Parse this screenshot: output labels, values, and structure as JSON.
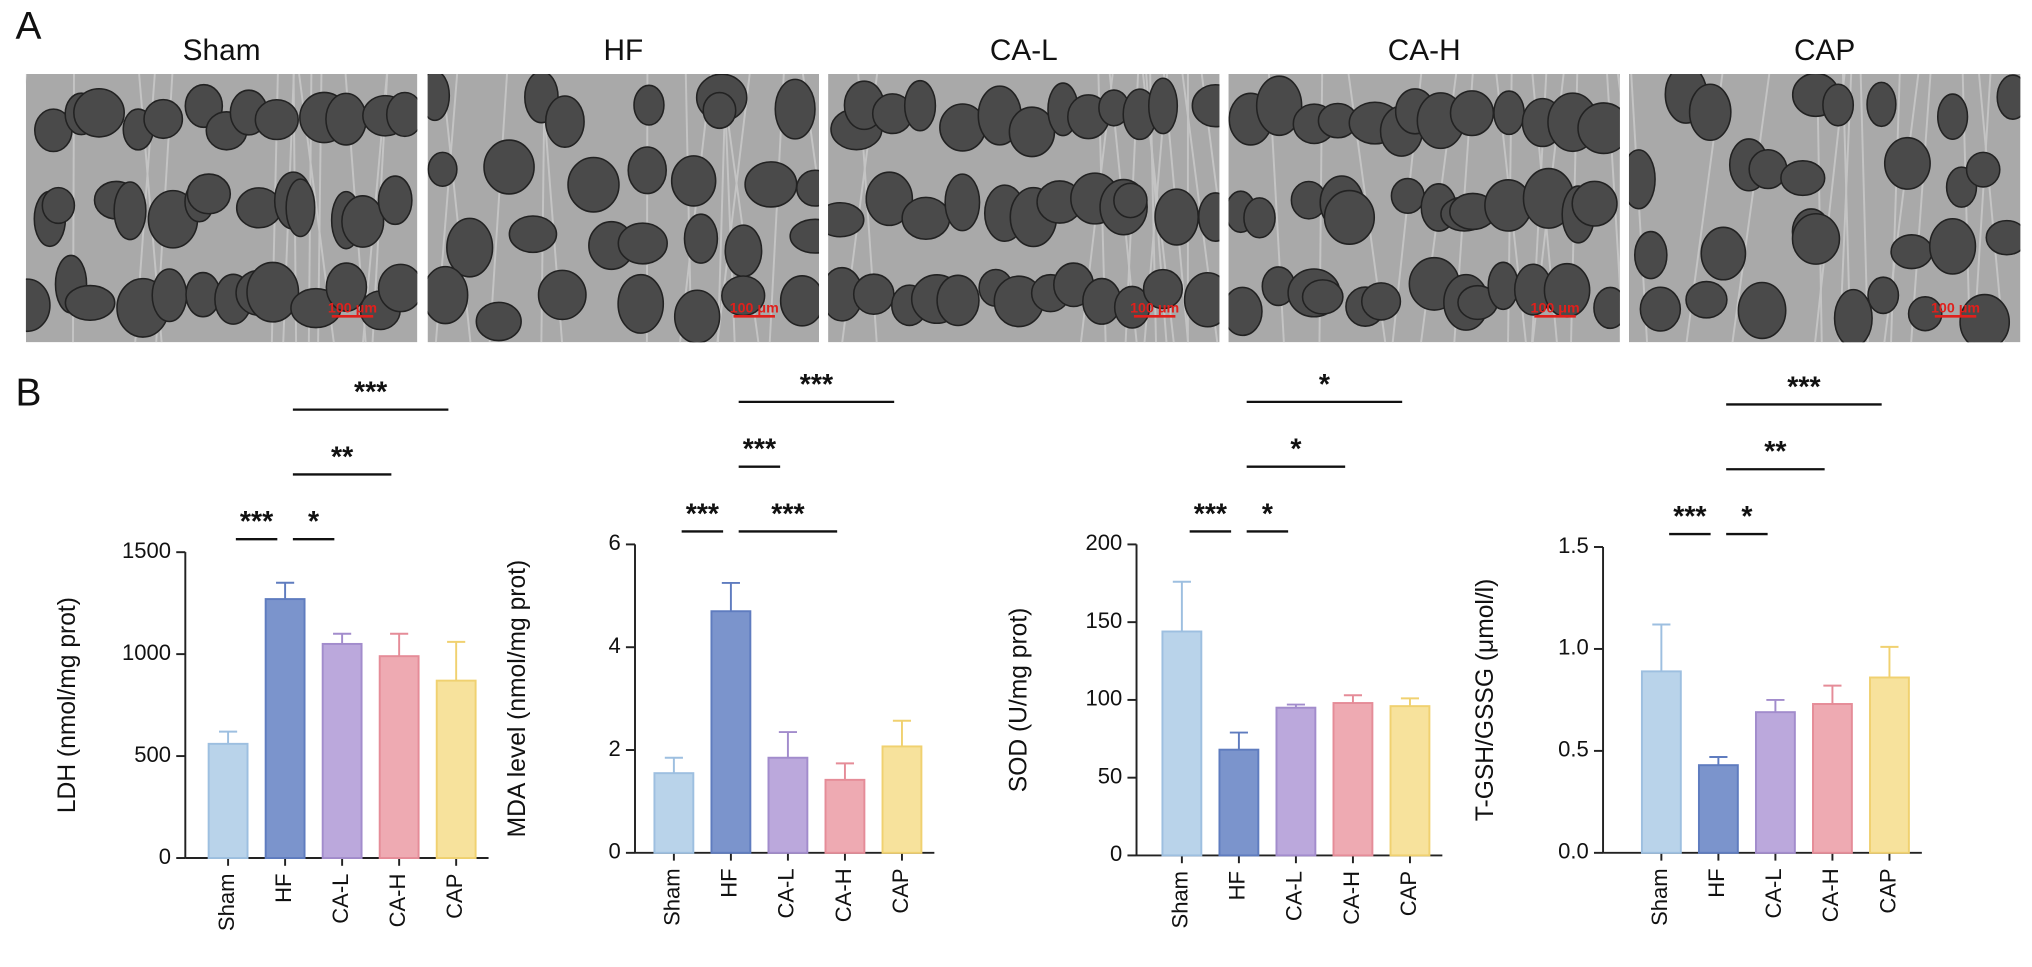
{
  "panel_a": {
    "label": "A",
    "images": [
      {
        "title": "Sham",
        "scale_bar": "100 μm"
      },
      {
        "title": "HF",
        "scale_bar": "100 μm"
      },
      {
        "title": "CA-L",
        "scale_bar": "100 μm"
      },
      {
        "title": "CA-H",
        "scale_bar": "100 μm"
      },
      {
        "title": "CAP",
        "scale_bar": "100 μm"
      }
    ]
  },
  "panel_b_label": "B",
  "chart_data": [
    {
      "type": "bar",
      "ylabel": "LDH (nmol/mg prot)",
      "categories": [
        "Sham",
        "HF",
        "CA-L",
        "CA-H",
        "CAP"
      ],
      "values": [
        560,
        1270,
        1050,
        990,
        870
      ],
      "errors": [
        60,
        80,
        50,
        110,
        190
      ],
      "colors": [
        "#b9d3ea",
        "#7b94cc",
        "#bba8dc",
        "#eeaab2",
        "#f7e29c"
      ],
      "edge_colors": [
        "#9dbfe0",
        "#5f7cbf",
        "#a28ccc",
        "#e58c98",
        "#f0d170"
      ],
      "ylim": [
        0,
        1500
      ],
      "yticks": [
        0,
        500,
        1000,
        1500
      ],
      "comparisons": [
        {
          "groups": [
            "Sham",
            "HF"
          ],
          "label": "***"
        },
        {
          "groups": [
            "HF",
            "CA-L"
          ],
          "label": "*"
        },
        {
          "groups": [
            "HF",
            "CA-H"
          ],
          "label": "**"
        },
        {
          "groups": [
            "HF",
            "CAP"
          ],
          "label": "***"
        }
      ]
    },
    {
      "type": "bar",
      "ylabel": "MDA level (nmol/mg prot)",
      "categories": [
        "Sham",
        "HF",
        "CA-L",
        "CA-H",
        "CAP"
      ],
      "values": [
        1.55,
        4.7,
        1.85,
        1.42,
        2.07
      ],
      "errors": [
        0.3,
        0.55,
        0.5,
        0.32,
        0.5
      ],
      "colors": [
        "#b9d3ea",
        "#7b94cc",
        "#bba8dc",
        "#eeaab2",
        "#f7e29c"
      ],
      "edge_colors": [
        "#9dbfe0",
        "#5f7cbf",
        "#a28ccc",
        "#e58c98",
        "#f0d170"
      ],
      "ylim": [
        0,
        6
      ],
      "yticks": [
        0,
        2,
        4,
        6
      ],
      "comparisons": [
        {
          "groups": [
            "Sham",
            "HF"
          ],
          "label": "***"
        },
        {
          "groups": [
            "HF",
            "CA-H"
          ],
          "label": "***"
        },
        {
          "groups": [
            "HF",
            "CA-L"
          ],
          "label": "***"
        },
        {
          "groups": [
            "HF",
            "CAP"
          ],
          "label": "***"
        }
      ]
    },
    {
      "type": "bar",
      "ylabel": "SOD (U/mg prot)",
      "categories": [
        "Sham",
        "HF",
        "CA-L",
        "CA-H",
        "CAP"
      ],
      "values": [
        144,
        68,
        95,
        98,
        96
      ],
      "errors": [
        32,
        11,
        2,
        5,
        5
      ],
      "colors": [
        "#b9d3ea",
        "#7b94cc",
        "#bba8dc",
        "#eeaab2",
        "#f7e29c"
      ],
      "edge_colors": [
        "#9dbfe0",
        "#5f7cbf",
        "#a28ccc",
        "#e58c98",
        "#f0d170"
      ],
      "ylim": [
        0,
        200
      ],
      "yticks": [
        0,
        50,
        100,
        150,
        200
      ],
      "comparisons": [
        {
          "groups": [
            "Sham",
            "HF"
          ],
          "label": "***"
        },
        {
          "groups": [
            "HF",
            "CA-L"
          ],
          "label": "*"
        },
        {
          "groups": [
            "HF",
            "CA-H"
          ],
          "label": "*"
        },
        {
          "groups": [
            "HF",
            "CAP"
          ],
          "label": "*"
        }
      ]
    },
    {
      "type": "bar",
      "ylabel": "T-GSH/GSSG (μmol/l)",
      "categories": [
        "Sham",
        "HF",
        "CA-L",
        "CA-H",
        "CAP"
      ],
      "values": [
        0.89,
        0.43,
        0.69,
        0.73,
        0.86
      ],
      "errors": [
        0.23,
        0.04,
        0.06,
        0.09,
        0.15
      ],
      "colors": [
        "#b9d3ea",
        "#7b94cc",
        "#bba8dc",
        "#eeaab2",
        "#f7e29c"
      ],
      "edge_colors": [
        "#9dbfe0",
        "#5f7cbf",
        "#a28ccc",
        "#e58c98",
        "#f0d170"
      ],
      "ylim": [
        0,
        1.5
      ],
      "yticks": [
        {
          "value": 0,
          "label": "0.0"
        },
        0.5,
        {
          "value": 1,
          "label": "1.0"
        },
        1.5
      ],
      "comparisons": [
        {
          "groups": [
            "Sham",
            "HF"
          ],
          "label": "***"
        },
        {
          "groups": [
            "HF",
            "CA-L"
          ],
          "label": "*"
        },
        {
          "groups": [
            "HF",
            "CA-H"
          ],
          "label": "**"
        },
        {
          "groups": [
            "HF",
            "CAP"
          ],
          "label": "***"
        }
      ]
    }
  ]
}
